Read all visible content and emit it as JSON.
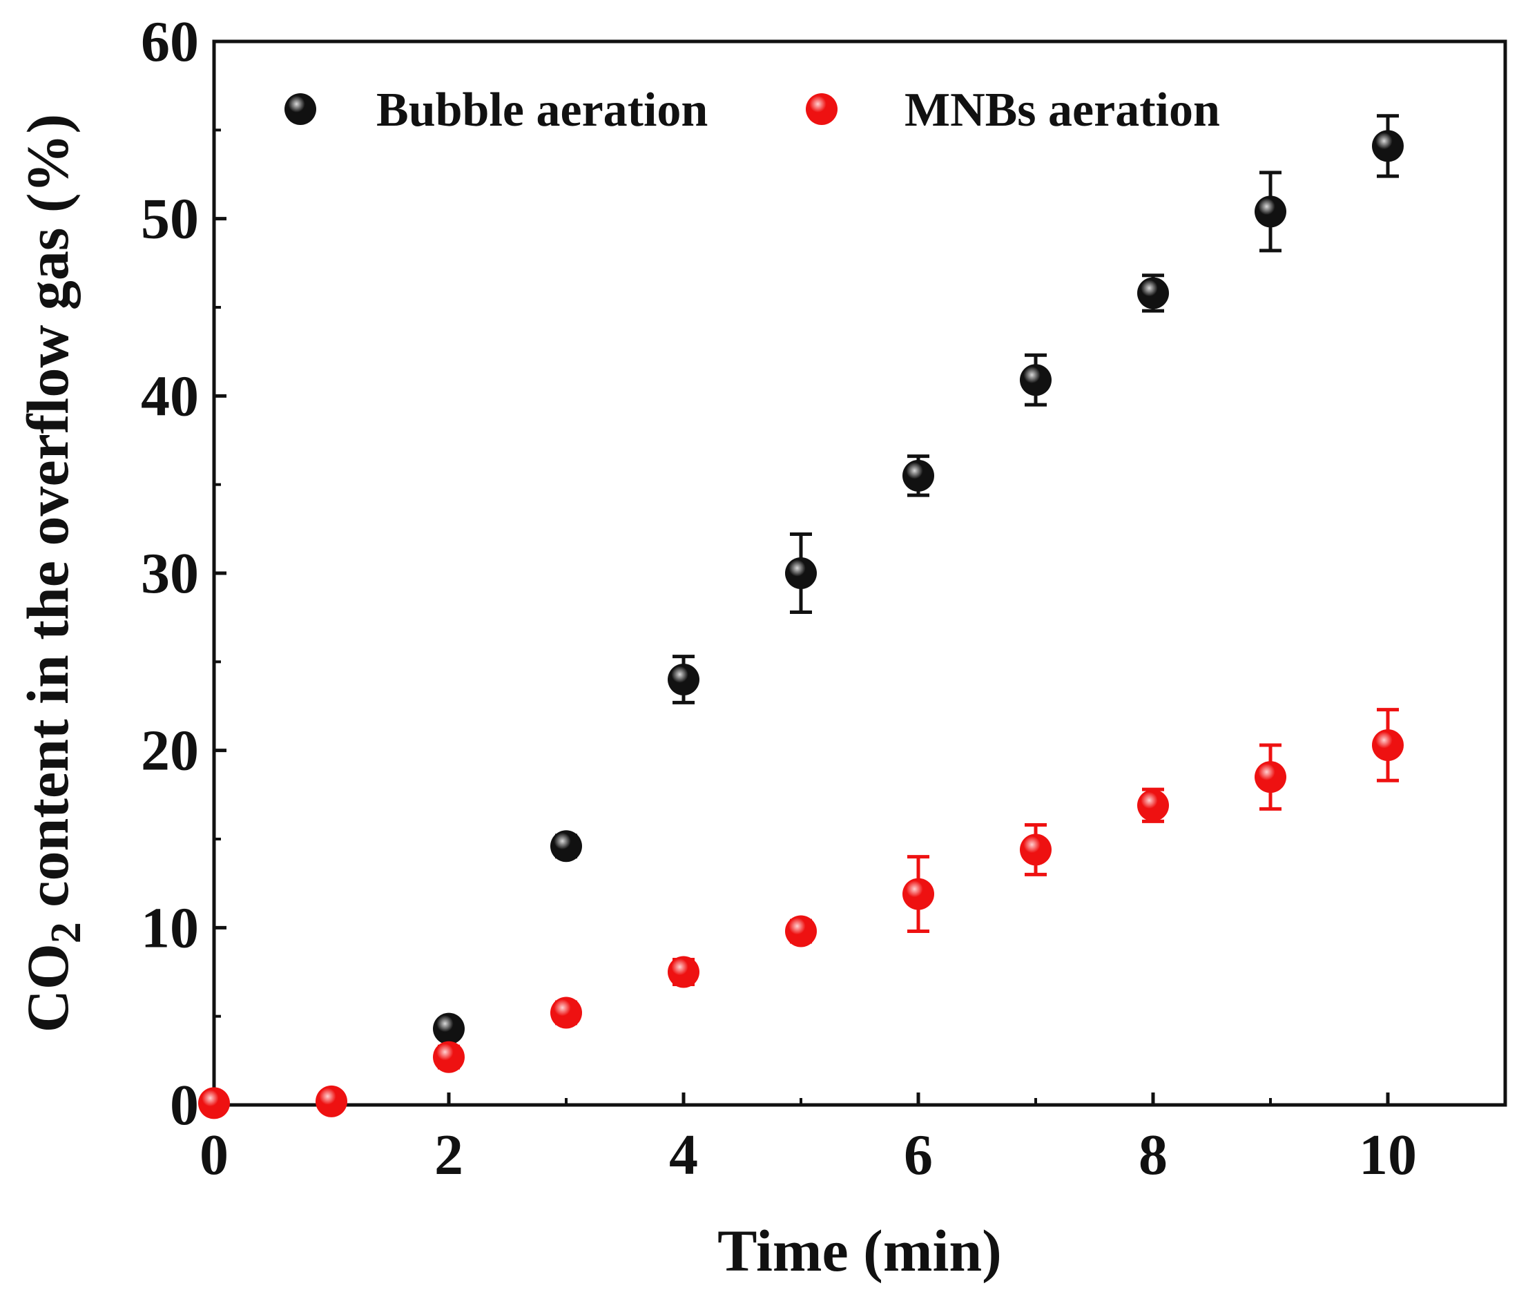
{
  "chart_data": {
    "type": "scatter",
    "title": "",
    "xlabel": "Time (min)",
    "ylabel_parts": [
      "CO",
      "2",
      " content in the overflow gas (%)"
    ],
    "xlim": [
      0,
      11
    ],
    "ylim": [
      0,
      60
    ],
    "xticks": [
      0,
      2,
      4,
      6,
      8,
      10
    ],
    "yticks": [
      0,
      10,
      20,
      30,
      40,
      50,
      60
    ],
    "legend_position": "top",
    "series": [
      {
        "name": "Bubble aeration",
        "color": "#111111",
        "x": [
          2,
          3,
          4,
          5,
          6,
          7,
          8,
          9,
          10
        ],
        "y": [
          4.3,
          14.6,
          24.0,
          30.0,
          35.5,
          40.9,
          45.8,
          50.4,
          54.1
        ],
        "err": [
          0.5,
          0.6,
          1.3,
          2.2,
          1.1,
          1.4,
          1.0,
          2.2,
          1.7
        ]
      },
      {
        "name": "MNBs aeration",
        "color": "#ee1111",
        "x": [
          0,
          1,
          2,
          3,
          4,
          5,
          6,
          7,
          8,
          9,
          10
        ],
        "y": [
          0.1,
          0.2,
          2.7,
          5.2,
          7.5,
          9.8,
          11.9,
          14.4,
          16.9,
          18.5,
          20.3
        ],
        "err": [
          0.0,
          0.0,
          0.6,
          0.6,
          0.7,
          0.6,
          2.1,
          1.4,
          0.9,
          1.8,
          2.0
        ]
      }
    ]
  }
}
